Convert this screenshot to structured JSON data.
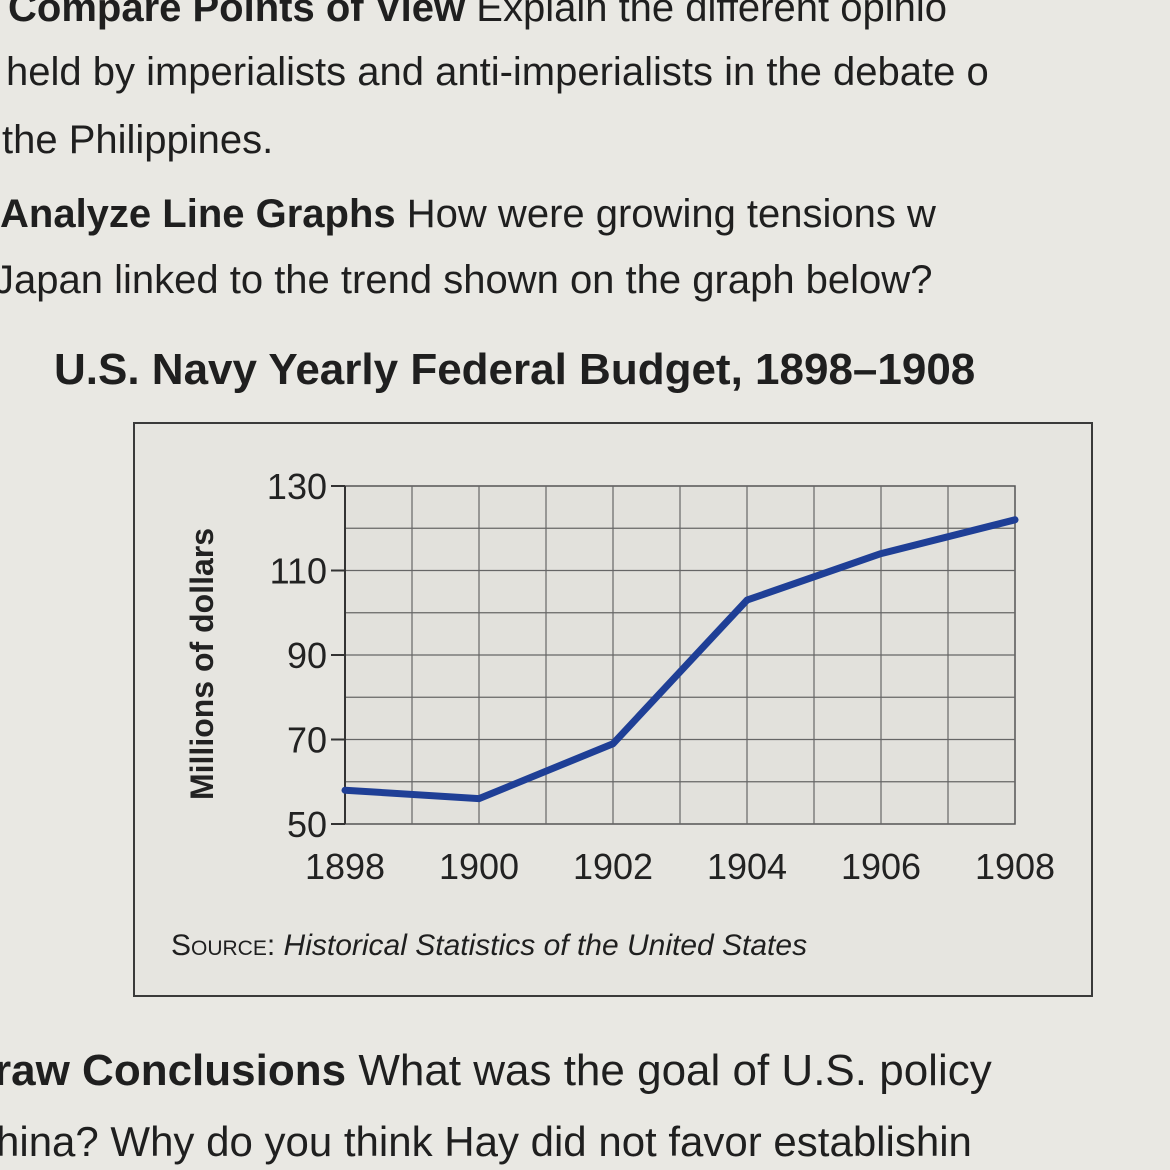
{
  "page": {
    "line1_bold": "Compare Points of View",
    "line1_text": "Explain the different opinio",
    "line2": "held by imperialists and anti-imperialists in the debate o",
    "line3": "the Philippines.",
    "line4_bold": "Analyze Line Graphs",
    "line4_text": "How were growing tensions w",
    "line5": "Japan linked to the trend shown on the graph below?",
    "line6_bold": "raw Conclusions",
    "line6_text": "What was the goal of U.S. policy",
    "line7": "hina? Why do you think Hay did not favor establishin"
  },
  "chart_data": {
    "type": "line",
    "title": "U.S. Navy Yearly Federal Budget, 1898–1908",
    "ylabel": "Millions of dollars",
    "xlabel": "",
    "x": [
      1898,
      1900,
      1902,
      1904,
      1906,
      1908
    ],
    "x_tick_labels": [
      "1898",
      "1900",
      "1902",
      "1904",
      "1906",
      "1908"
    ],
    "y": [
      58,
      56,
      69,
      103,
      114,
      122
    ],
    "y_ticks": [
      50,
      70,
      90,
      110,
      130
    ],
    "y_tick_labels": [
      "50",
      "70",
      "90",
      "110",
      "130"
    ],
    "ylim": [
      50,
      130
    ],
    "xlim": [
      1898,
      1908
    ],
    "grid": true,
    "series_color": "#1f3f96",
    "source_label": "Source:",
    "source_text": "Historical Statistics of the United States"
  }
}
